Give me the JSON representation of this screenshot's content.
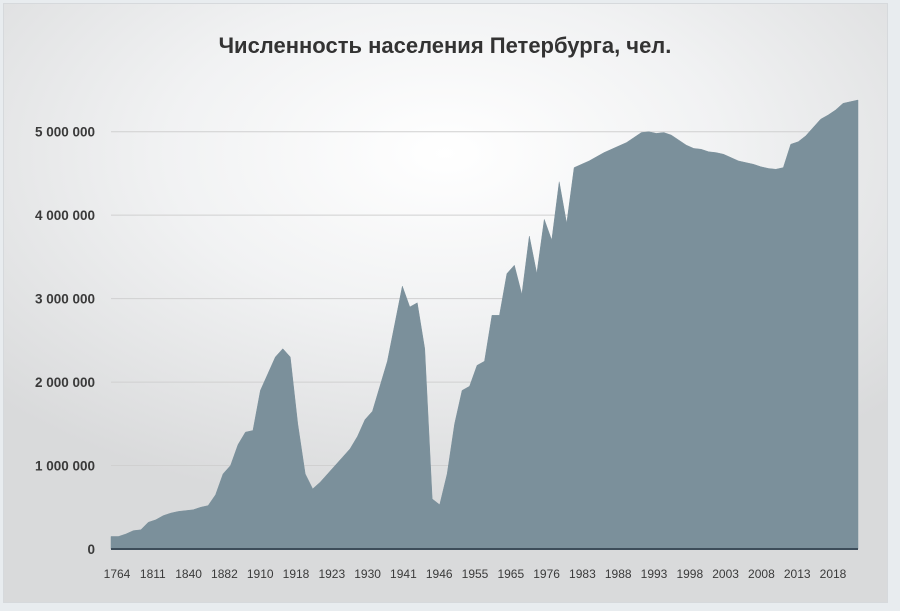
{
  "chart_data": {
    "type": "area",
    "title": "Численность населения Петербурга, чел.",
    "xlabel": "",
    "ylabel": "",
    "ylim": [
      0,
      5500000
    ],
    "yticks": [
      0,
      1000000,
      2000000,
      3000000,
      4000000,
      5000000
    ],
    "ytick_labels": [
      "0",
      "1 000 000",
      "2 000 000",
      "3 000 000",
      "4 000 000",
      "5 000 000"
    ],
    "xtick_labels": [
      "1764",
      "1811",
      "1840",
      "1882",
      "1910",
      "1918",
      "1923",
      "1930",
      "1941",
      "1946",
      "1955",
      "1965",
      "1976",
      "1983",
      "1988",
      "1993",
      "1998",
      "2003",
      "2008",
      "2013",
      "2018"
    ],
    "grid": true,
    "legend": "none",
    "colors": {
      "fill": "#7b909b",
      "axis": "#3d4d5a",
      "grid": "#d0d0d0"
    },
    "series": [
      {
        "values": [
          150000,
          150000,
          180000,
          220000,
          230000,
          320000,
          350000,
          400000,
          430000,
          450000,
          460000,
          470000,
          500000,
          520000,
          650000,
          900000,
          1000000,
          1250000,
          1400000,
          1420000,
          1900000,
          2100000,
          2300000,
          2400000,
          2300000,
          1500000,
          900000,
          720000,
          800000,
          900000,
          1000000,
          1100000,
          1200000,
          1350000,
          1550000,
          1650000,
          1950000,
          2250000,
          2700000,
          3150000,
          2900000,
          2950000,
          2400000,
          600000,
          530000,
          900000,
          1500000,
          1900000,
          1950000,
          2200000,
          2250000,
          2800000,
          2800000,
          3300000,
          3400000,
          3050000,
          3750000,
          3300000,
          3950000,
          3700000,
          4400000,
          3900000,
          4570000,
          4610000,
          4650000,
          4700000,
          4750000,
          4790000,
          4830000,
          4870000,
          4930000,
          4990000,
          5000000,
          4980000,
          4990000,
          4960000,
          4900000,
          4840000,
          4800000,
          4790000,
          4760000,
          4750000,
          4730000,
          4690000,
          4650000,
          4630000,
          4610000,
          4580000,
          4560000,
          4550000,
          4570000,
          4850000,
          4880000,
          4950000,
          5050000,
          5150000,
          5200000,
          5260000,
          5340000,
          5360000,
          5380000
        ]
      }
    ]
  }
}
